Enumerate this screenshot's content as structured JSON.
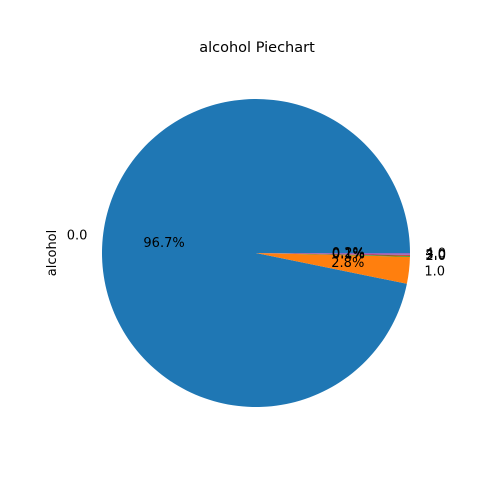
{
  "chart_data": {
    "type": "pie",
    "title": "alcohol Piechart",
    "ylabel": "alcohol",
    "categories": [
      "0.0",
      "1.0",
      "2.0",
      "3.0",
      "4.0"
    ],
    "values": [
      96.7,
      2.8,
      0.1,
      0.1,
      0.2
    ],
    "pct_labels": [
      "96.7%",
      "2.8%",
      "0.1%",
      "0.1%",
      "0.2%"
    ],
    "colors": [
      "#1f77b4",
      "#ff7f0e",
      "#2ca02c",
      "#d62728",
      "#9467bd"
    ],
    "start_angle_deg": 0,
    "direction": "counterclockwise",
    "legend": "none"
  }
}
